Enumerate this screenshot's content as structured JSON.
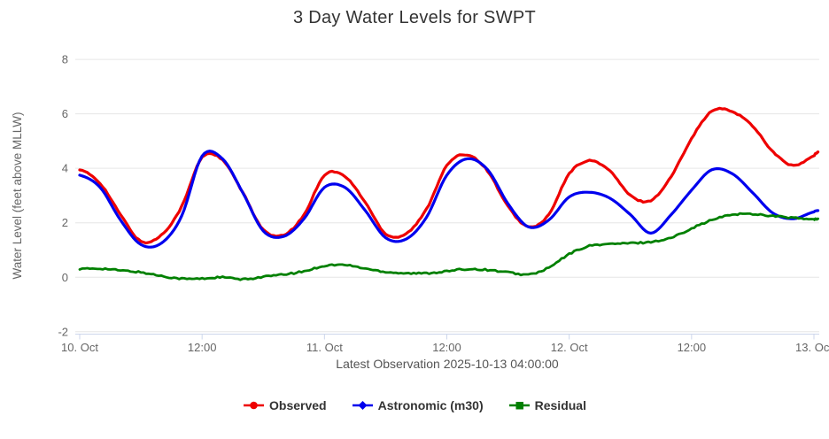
{
  "header": {
    "title": "3 Day Water Levels for SWPT"
  },
  "axes": {
    "y_title": "Water Level (feet above MLLW)",
    "x_title": "Latest Observation 2025-10-13 04:00:00"
  },
  "colors": {
    "observed": "#ee0000",
    "astronomic": "#0000ee",
    "residual": "#008000",
    "grid": "#e6e6e6",
    "axis_line": "#ccd6eb",
    "tick_label": "#666666",
    "title_text": "#333333"
  },
  "chart_data": {
    "type": "line",
    "title": "3 Day Water Levels for SWPT",
    "xlabel": "Latest Observation 2025-10-13 04:00:00",
    "ylabel": "Water Level (feet above MLLW)",
    "ylim": [
      -2,
      8
    ],
    "grid": true,
    "legend_position": "bottom",
    "x_unit": "hours since 2025-10-10 00:00",
    "x_ticks": [
      {
        "hour": 0,
        "label": "10. Oct"
      },
      {
        "hour": 12,
        "label": "12:00"
      },
      {
        "hour": 24,
        "label": "11. Oct"
      },
      {
        "hour": 36,
        "label": "12:00"
      },
      {
        "hour": 48,
        "label": "12. Oct"
      },
      {
        "hour": 60,
        "label": "12:00"
      },
      {
        "hour": 72,
        "label": "13. Oct"
      }
    ],
    "y_ticks": [
      {
        "value": -2,
        "label": "-2"
      },
      {
        "value": 0,
        "label": "0"
      },
      {
        "value": 2,
        "label": "2"
      },
      {
        "value": 4,
        "label": "4"
      },
      {
        "value": 6,
        "label": "6"
      },
      {
        "value": 8,
        "label": "8"
      }
    ],
    "x_hours": [
      0,
      2,
      4,
      6,
      8,
      10,
      12,
      14,
      16,
      18,
      20,
      22,
      24,
      26,
      28,
      30,
      32,
      34,
      36,
      38,
      40,
      42,
      44,
      46,
      48,
      50,
      52,
      54,
      56,
      58,
      60,
      62,
      64,
      66,
      68,
      70,
      72,
      72.4
    ],
    "series": [
      {
        "id": "observed",
        "name": "Observed",
        "color": "#ee0000",
        "marker": "circle",
        "values": [
          3.95,
          3.45,
          2.3,
          1.32,
          1.55,
          2.6,
          4.4,
          4.3,
          3.1,
          1.75,
          1.55,
          2.3,
          3.75,
          3.7,
          2.75,
          1.6,
          1.6,
          2.5,
          4.1,
          4.5,
          3.9,
          2.6,
          1.85,
          2.3,
          3.8,
          4.28,
          3.9,
          3.0,
          2.82,
          3.7,
          5.1,
          6.1,
          6.08,
          5.55,
          4.6,
          4.1,
          4.45,
          4.6
        ]
      },
      {
        "id": "astronomic",
        "name": "Astronomic (m30)",
        "color": "#0000ee",
        "marker": "diamond",
        "values": [
          3.75,
          3.3,
          2.1,
          1.2,
          1.25,
          2.25,
          4.45,
          4.35,
          3.1,
          1.7,
          1.5,
          2.15,
          3.3,
          3.3,
          2.45,
          1.45,
          1.4,
          2.2,
          3.75,
          4.35,
          3.95,
          2.7,
          1.85,
          2.1,
          2.95,
          3.12,
          2.9,
          2.3,
          1.62,
          2.3,
          3.2,
          3.95,
          3.8,
          3.1,
          2.35,
          2.15,
          2.4,
          2.45
        ]
      },
      {
        "id": "residual",
        "name": "Residual",
        "color": "#008000",
        "marker": "square",
        "values": [
          0.3,
          0.32,
          0.25,
          0.18,
          0.05,
          -0.05,
          -0.05,
          0.0,
          -0.08,
          0.02,
          0.1,
          0.22,
          0.42,
          0.45,
          0.32,
          0.2,
          0.15,
          0.15,
          0.22,
          0.3,
          0.27,
          0.18,
          0.1,
          0.35,
          0.85,
          1.15,
          1.22,
          1.25,
          1.3,
          1.45,
          1.8,
          2.1,
          2.3,
          2.32,
          2.25,
          2.18,
          2.12,
          2.15
        ]
      }
    ]
  }
}
